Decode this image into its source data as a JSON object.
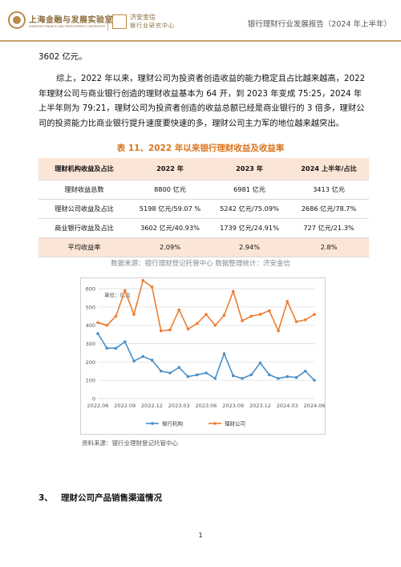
{
  "header": {
    "logo1_cn": "上海金融与发展实验室",
    "logo1_en": "SHANGHAI FINANCE AND DEVELOPMENT LABORATORY",
    "logo2_line1": "济安金信",
    "logo2_line2": "银行业研究中心",
    "title": "银行理财行业发展报告（2024 年上半年）",
    "rule_color": "#c8a06a"
  },
  "body": {
    "para0": "3602 亿元。",
    "para1": "综上，2022 年以来，理财公司为投资者创造收益的能力稳定且占比越来越高，2022 年理财公司与商业银行创造的理财收益基本为 64 开，到 2023 年变成 75:25，2024 年上半年则为 79:21，理财公司为投资者创造的收益总额已经是商业银行的 3 倍多，理财公司的投资能力比商业银行提升速度要快速的多，理财公司主力军的地位越来越突出。"
  },
  "table": {
    "title": "表 11、2022 年以来银行理财收益及收益率",
    "headers": [
      "理财机构收益及占比",
      "2022 年",
      "2023 年",
      "2024 上半年/占比"
    ],
    "rows": [
      [
        "理财收益总数",
        "8800 亿元",
        "6981 亿元",
        "3413 亿元"
      ],
      [
        "理财公司收益及占比",
        "5198 亿元/59.07 %",
        "5242 亿元/75.09%",
        "2686 亿元/78.7%"
      ],
      [
        "商业银行收益及占比",
        "3602 亿元/40.93%",
        "1739 亿元/24.91%",
        "727 亿元/21.3%"
      ],
      [
        "平均收益率",
        "2.09%",
        "2.94%",
        "2.8%"
      ]
    ],
    "header_bg": "#fbe5d6",
    "source": "数据来源：银行理财登记托管中心      数据整理统计：济安金信"
  },
  "chart_data": {
    "type": "line",
    "unit_label": "单位：亿元",
    "x": [
      "2022.06",
      "2022.07",
      "2022.08",
      "2022.09",
      "2022.10",
      "2022.11",
      "2022.12",
      "2023.01",
      "2023.02",
      "2023.03",
      "2023.04",
      "2023.05",
      "2023.06",
      "2023.07",
      "2023.08",
      "2023.09",
      "2023.10",
      "2023.11",
      "2023.12",
      "2024.01",
      "2024.02",
      "2024.03",
      "2024.04",
      "2024.05",
      "2024.06"
    ],
    "x_tick_labels": [
      "2022.06",
      "2022.09",
      "2022.12",
      "2023.03",
      "2023.06",
      "2023.09",
      "2023.12",
      "2024.03",
      "2024.06"
    ],
    "ylim": [
      0,
      600
    ],
    "y_ticks": [
      0,
      100,
      200,
      300,
      400,
      500,
      600
    ],
    "grid": true,
    "legend_position": "bottom",
    "series": [
      {
        "name": "银行机构",
        "color": "#4a90c8",
        "values": [
          355,
          275,
          275,
          310,
          205,
          230,
          210,
          150,
          140,
          170,
          120,
          130,
          140,
          110,
          245,
          125,
          110,
          130,
          195,
          130,
          110,
          120,
          115,
          150,
          100
        ]
      },
      {
        "name": "理财公司",
        "color": "#ed7d31",
        "values": [
          415,
          400,
          450,
          590,
          460,
          645,
          610,
          370,
          375,
          485,
          380,
          410,
          460,
          400,
          455,
          585,
          425,
          450,
          460,
          480,
          370,
          530,
          420,
          430,
          460
        ]
      }
    ]
  },
  "chart_source": "资料来源：银行业理财登记托管中心",
  "section": {
    "number": "3、",
    "title": "理财公司产品销售渠道情况"
  },
  "page_number": "1"
}
